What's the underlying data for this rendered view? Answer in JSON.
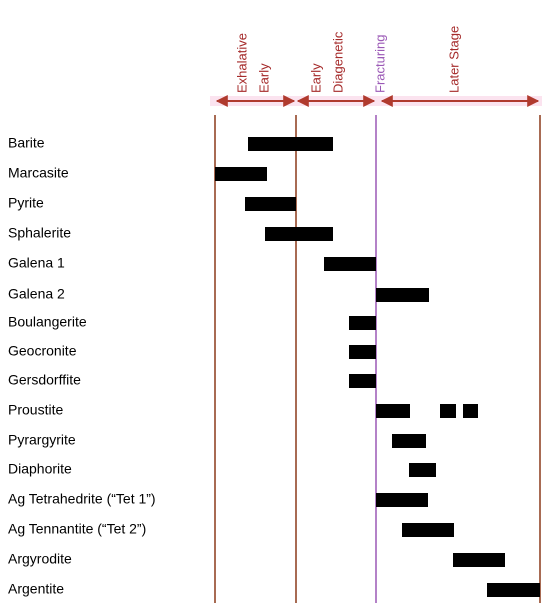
{
  "stages": [
    [
      "Exhalative",
      "Early"
    ],
    [
      "Early",
      "Diagenetic"
    ],
    [
      "Fracturing"
    ],
    [
      "Later Stage"
    ]
  ],
  "minerals": [
    "Barite",
    "Marcasite",
    "Pyrite",
    "Sphalerite",
    "Galena 1",
    "Galena 2",
    "Boulangerite",
    "Geocronite",
    "Gersdorffite",
    "Proustite",
    "Pyrargyrite",
    "Diaphorite",
    "Ag Tetrahedrite  (“Tet 1”)",
    "Ag Tennantite  (“Tet 2”)",
    "Argyrodite",
    "Argentite"
  ]
}
